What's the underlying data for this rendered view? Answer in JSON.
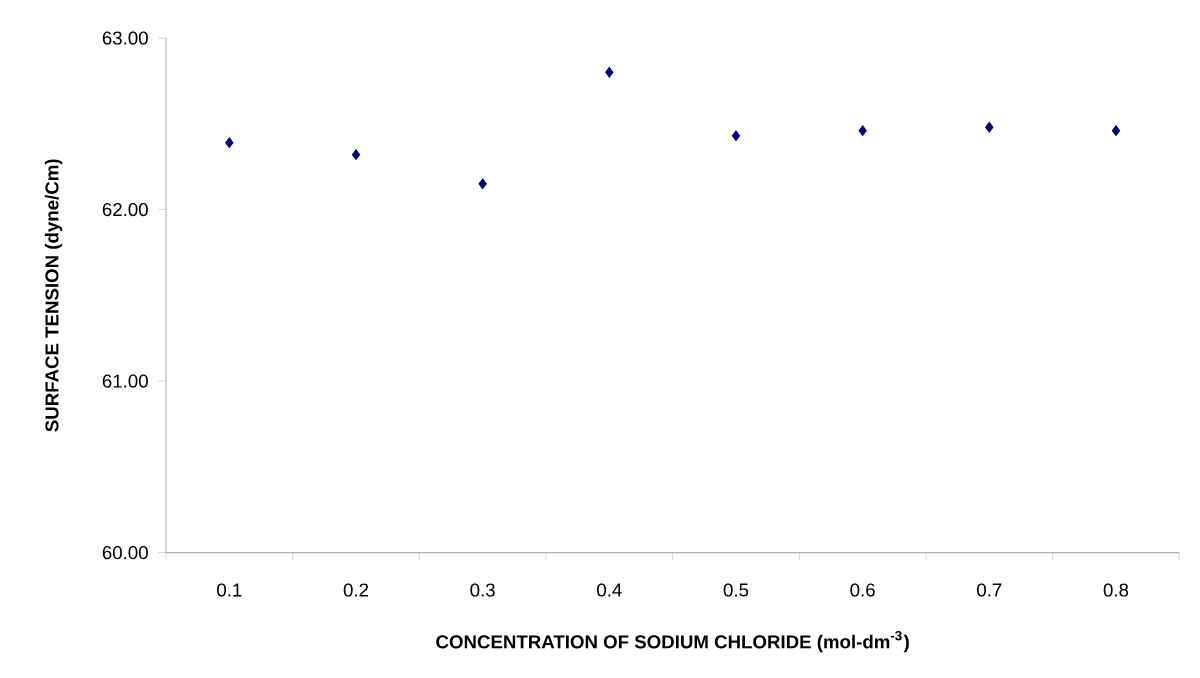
{
  "chart_data": {
    "type": "scatter",
    "xlabel": "CONCENTRATION OF SODIUM CHLORIDE (mol-dm$^{-3}$)",
    "ylabel": "SURFACE TENSION (dyne/Cm)",
    "categories": [
      "0.1",
      "0.2",
      "0.3",
      "0.4",
      "0.5",
      "0.6",
      "0.7",
      "0.8"
    ],
    "series": [
      {
        "color": "#000080",
        "values": [
          62.39,
          62.32,
          62.15,
          62.8,
          62.43,
          62.46,
          62.48,
          62.46
        ]
      }
    ],
    "ylim": [
      60,
      63
    ],
    "yticks": [
      {
        "value": 60,
        "label": "60.00"
      },
      {
        "value": 61,
        "label": "61.00"
      },
      {
        "value": 62,
        "label": "62.00"
      },
      {
        "value": 63,
        "label": "63.00"
      }
    ],
    "marker": "diamond",
    "grid": false
  }
}
